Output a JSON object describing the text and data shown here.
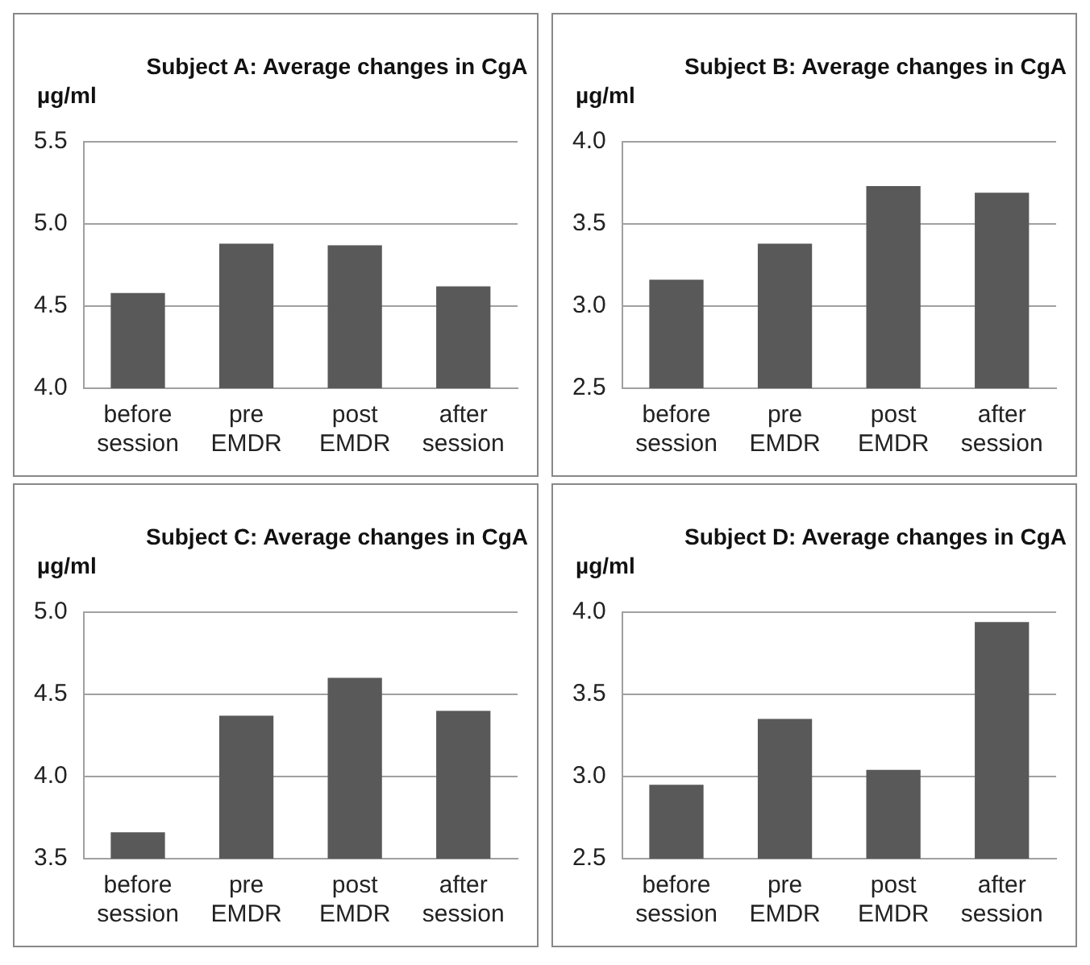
{
  "chart_data": [
    {
      "type": "bar",
      "title": "Subject A: Average changes in CgA",
      "ylabel": "µg/ml",
      "categories": [
        "before\nsession",
        "pre\nEMDR",
        "post\nEMDR",
        "after\nsession"
      ],
      "values": [
        4.58,
        4.88,
        4.87,
        4.62
      ],
      "color": "#595959",
      "ylim": [
        4.0,
        5.5
      ],
      "yticks": [
        {
          "value": 4.0,
          "label": "4.0"
        },
        4.5,
        {
          "value": 5.0,
          "label": "5.0"
        },
        5.5
      ],
      "grid": "y"
    },
    {
      "type": "bar",
      "title": "Subject B: Average changes in CgA",
      "ylabel": "µg/ml",
      "categories": [
        "before\nsession",
        "pre\nEMDR",
        "post\nEMDR",
        "after\nsession"
      ],
      "values": [
        3.16,
        3.38,
        3.73,
        3.69
      ],
      "color": "#595959",
      "ylim": [
        2.5,
        4.0
      ],
      "yticks": [
        2.5,
        {
          "value": 3.0,
          "label": "3.0"
        },
        3.5,
        {
          "value": 4.0,
          "label": "4.0"
        }
      ],
      "grid": "y"
    },
    {
      "type": "bar",
      "title": "Subject C: Average changes in CgA",
      "ylabel": "µg/ml",
      "categories": [
        "before\nsession",
        "pre\nEMDR",
        "post\nEMDR",
        "after\nsession"
      ],
      "values": [
        3.66,
        4.37,
        4.6,
        4.4
      ],
      "color": "#595959",
      "ylim": [
        3.5,
        5.0
      ],
      "yticks": [
        3.5,
        {
          "value": 4.0,
          "label": "4.0"
        },
        4.5,
        {
          "value": 5.0,
          "label": "5.0"
        }
      ],
      "grid": "y"
    },
    {
      "type": "bar",
      "title": "Subject D: Average changes in CgA",
      "ylabel": "µg/ml",
      "categories": [
        "before\nsession",
        "pre\nEMDR",
        "post\nEMDR",
        "after\nsession"
      ],
      "values": [
        2.95,
        3.35,
        3.04,
        3.94
      ],
      "color": "#595959",
      "ylim": [
        2.5,
        4.0
      ],
      "yticks": [
        2.5,
        {
          "value": 3.0,
          "label": "3.0"
        },
        3.5,
        {
          "value": 4.0,
          "label": "4.0"
        }
      ],
      "grid": "y"
    }
  ]
}
